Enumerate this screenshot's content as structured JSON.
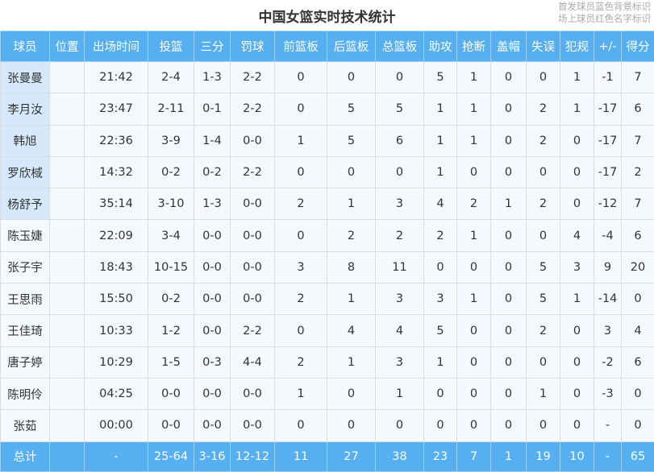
{
  "title": "中国女篮实时技术统计",
  "legend": [
    "首发球员蓝色背景标识",
    "场上球员红色名字标识"
  ],
  "colors": {
    "header": "#56aff0",
    "starter_bg": "#d6e9fb",
    "row_bg": "#f5f9fd"
  },
  "columns": [
    "球员",
    "位置",
    "出场时间",
    "投篮",
    "三分",
    "罚球",
    "前篮板",
    "后篮板",
    "总篮板",
    "助攻",
    "抢断",
    "盖帽",
    "失误",
    "犯规",
    "+/-",
    "得分"
  ],
  "rows": [
    {
      "starter": true,
      "cells": [
        "张曼曼",
        "",
        "21:42",
        "2-4",
        "1-3",
        "2-2",
        "0",
        "0",
        "0",
        "5",
        "1",
        "0",
        "0",
        "1",
        "-1",
        "7"
      ]
    },
    {
      "starter": true,
      "cells": [
        "李月汝",
        "",
        "23:47",
        "2-11",
        "0-1",
        "2-2",
        "0",
        "5",
        "5",
        "1",
        "1",
        "0",
        "2",
        "1",
        "-17",
        "6"
      ]
    },
    {
      "starter": true,
      "cells": [
        "韩旭",
        "",
        "22:36",
        "3-9",
        "1-4",
        "0-0",
        "1",
        "5",
        "6",
        "1",
        "1",
        "0",
        "2",
        "0",
        "-17",
        "7"
      ]
    },
    {
      "starter": true,
      "cells": [
        "罗欣棫",
        "",
        "14:32",
        "0-2",
        "0-2",
        "2-2",
        "0",
        "0",
        "0",
        "1",
        "0",
        "0",
        "0",
        "0",
        "-17",
        "2"
      ]
    },
    {
      "starter": true,
      "cells": [
        "杨舒予",
        "",
        "35:14",
        "3-10",
        "1-3",
        "0-0",
        "2",
        "1",
        "3",
        "4",
        "2",
        "1",
        "2",
        "0",
        "-12",
        "7"
      ]
    },
    {
      "starter": false,
      "cells": [
        "陈玉婕",
        "",
        "22:09",
        "3-4",
        "0-0",
        "0-0",
        "0",
        "2",
        "2",
        "2",
        "1",
        "0",
        "0",
        "4",
        "-4",
        "6"
      ]
    },
    {
      "starter": false,
      "cells": [
        "张子宇",
        "",
        "18:43",
        "10-15",
        "0-0",
        "0-0",
        "3",
        "8",
        "11",
        "0",
        "0",
        "0",
        "5",
        "3",
        "9",
        "20"
      ]
    },
    {
      "starter": false,
      "cells": [
        "王思雨",
        "",
        "15:50",
        "0-2",
        "0-0",
        "0-0",
        "2",
        "1",
        "3",
        "3",
        "1",
        "0",
        "5",
        "1",
        "-14",
        "0"
      ]
    },
    {
      "starter": false,
      "cells": [
        "王佳琦",
        "",
        "10:33",
        "1-2",
        "0-0",
        "2-2",
        "0",
        "4",
        "4",
        "5",
        "0",
        "0",
        "2",
        "0",
        "3",
        "4"
      ]
    },
    {
      "starter": false,
      "cells": [
        "唐子婷",
        "",
        "10:29",
        "1-5",
        "0-3",
        "4-4",
        "2",
        "1",
        "3",
        "1",
        "0",
        "0",
        "0",
        "0",
        "-2",
        "6"
      ]
    },
    {
      "starter": false,
      "cells": [
        "陈明伶",
        "",
        "04:25",
        "0-0",
        "0-0",
        "0-0",
        "1",
        "0",
        "1",
        "0",
        "0",
        "0",
        "1",
        "0",
        "-3",
        "0"
      ]
    },
    {
      "starter": false,
      "cells": [
        "张茹",
        "",
        "00:00",
        "0-0",
        "0-0",
        "0-0",
        "0",
        "0",
        "0",
        "0",
        "0",
        "0",
        "0",
        "0",
        "-",
        "0"
      ]
    }
  ],
  "total": [
    "总计",
    "",
    "-",
    "25-64",
    "3-16",
    "12-12",
    "11",
    "27",
    "38",
    "23",
    "7",
    "1",
    "19",
    "10",
    "-",
    "65"
  ]
}
